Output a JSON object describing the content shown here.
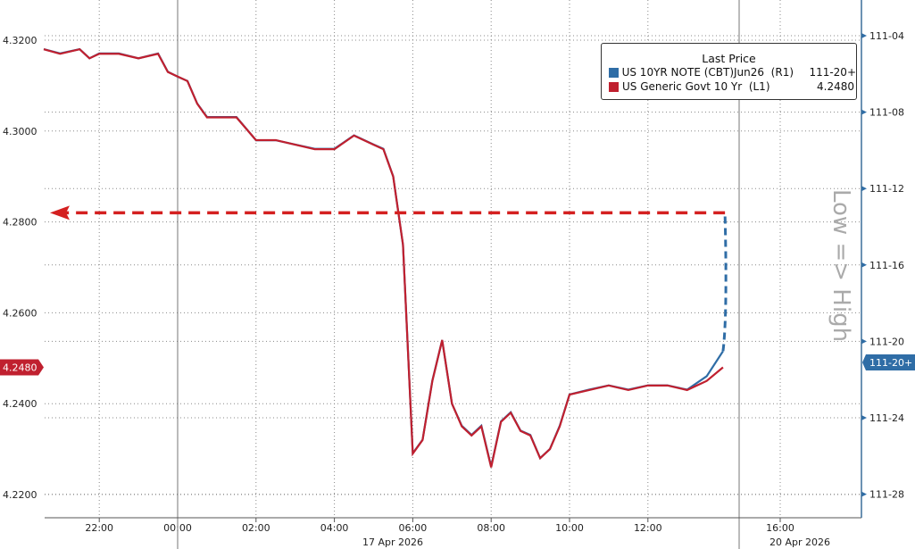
{
  "chart_data": {
    "type": "line",
    "legend": {
      "title": "Last Price",
      "placement": "top-right"
    },
    "watermark": "Low => High",
    "x_ticks": [
      "22:00",
      "00:00",
      "02:00",
      "04:00",
      "06:00",
      "08:00",
      "10:00",
      "12:00",
      "16:00"
    ],
    "date_labels": [
      "17 Apr 2026",
      "20 Apr 2026"
    ],
    "left_axis": {
      "ticks": [
        "4.3200",
        "4.3000",
        "4.2800",
        "4.2600",
        "4.2400",
        "4.2200"
      ],
      "range": [
        4.215,
        4.329
      ]
    },
    "right_axis": {
      "ticks": [
        "111-04",
        "111-08",
        "111-12",
        "111-16",
        "111-20",
        "111-24",
        "111-28"
      ],
      "inverted": true
    },
    "series": [
      {
        "name": "US 10YR NOTE (CBT)Jun26",
        "axis": "R1",
        "last": "111-20+",
        "color": "#2f6da6",
        "points": [
          [
            "20:35",
            111.147
          ],
          [
            "21:00",
            111.154
          ],
          [
            "21:30",
            111.147
          ],
          [
            "21:45",
            111.162
          ],
          [
            "22:00",
            111.154
          ],
          [
            "22:30",
            111.154
          ],
          [
            "23:00",
            111.162
          ],
          [
            "23:30",
            111.154
          ],
          [
            "23:45",
            111.184
          ],
          [
            "00:00",
            111.192
          ],
          [
            "00:15",
            111.199
          ],
          [
            "00:30",
            111.236
          ],
          [
            "00:45",
            111.258
          ],
          [
            "01:00",
            111.258
          ],
          [
            "01:30",
            111.258
          ],
          [
            "02:00",
            111.296
          ],
          [
            "02:30",
            111.296
          ],
          [
            "03:00",
            111.303
          ],
          [
            "03:30",
            111.31
          ],
          [
            "04:00",
            111.31
          ],
          [
            "04:30",
            111.288
          ],
          [
            "05:00",
            111.303
          ],
          [
            "05:15",
            111.31
          ],
          [
            "05:30",
            111.355
          ],
          [
            "05:45",
            111.467
          ],
          [
            "06:00",
            111.808
          ],
          [
            "06:15",
            111.786
          ],
          [
            "06:30",
            111.689
          ],
          [
            "06:45",
            111.623
          ],
          [
            "07:00",
            111.727
          ],
          [
            "07:15",
            111.763
          ],
          [
            "07:30",
            111.778
          ],
          [
            "07:45",
            111.763
          ],
          [
            "08:00",
            111.83
          ],
          [
            "08:15",
            111.756
          ],
          [
            "08:30",
            111.741
          ],
          [
            "08:45",
            111.771
          ],
          [
            "09:00",
            111.778
          ],
          [
            "09:15",
            111.816
          ],
          [
            "09:30",
            111.801
          ],
          [
            "09:45",
            111.763
          ],
          [
            "10:00",
            111.712
          ],
          [
            "10:30",
            111.704
          ],
          [
            "11:00",
            111.697
          ],
          [
            "11:30",
            111.704
          ],
          [
            "12:00",
            111.697
          ],
          [
            "12:30",
            111.697
          ],
          [
            "13:00",
            111.704
          ],
          [
            "13:30",
            111.682
          ],
          [
            "13:55",
            111.641
          ]
        ],
        "dashed_to": [
          "13:58",
          111.416
        ]
      },
      {
        "name": "US Generic Govt 10 Yr",
        "axis": "L1",
        "last": "4.2480",
        "color": "#c0202f",
        "points": [
          [
            "20:35",
            4.318
          ],
          [
            "21:00",
            4.317
          ],
          [
            "21:30",
            4.318
          ],
          [
            "21:45",
            4.316
          ],
          [
            "22:00",
            4.317
          ],
          [
            "22:30",
            4.317
          ],
          [
            "23:00",
            4.316
          ],
          [
            "23:30",
            4.317
          ],
          [
            "23:45",
            4.313
          ],
          [
            "00:00",
            4.312
          ],
          [
            "00:15",
            4.311
          ],
          [
            "00:30",
            4.306
          ],
          [
            "00:45",
            4.303
          ],
          [
            "01:00",
            4.303
          ],
          [
            "01:30",
            4.303
          ],
          [
            "02:00",
            4.298
          ],
          [
            "02:30",
            4.298
          ],
          [
            "03:00",
            4.297
          ],
          [
            "03:30",
            4.296
          ],
          [
            "04:00",
            4.296
          ],
          [
            "04:30",
            4.299
          ],
          [
            "05:00",
            4.297
          ],
          [
            "05:15",
            4.296
          ],
          [
            "05:30",
            4.29
          ],
          [
            "05:45",
            4.275
          ],
          [
            "06:00",
            4.229
          ],
          [
            "06:15",
            4.232
          ],
          [
            "06:30",
            4.245
          ],
          [
            "06:45",
            4.254
          ],
          [
            "07:00",
            4.24
          ],
          [
            "07:15",
            4.235
          ],
          [
            "07:30",
            4.233
          ],
          [
            "07:45",
            4.235
          ],
          [
            "08:00",
            4.226
          ],
          [
            "08:15",
            4.236
          ],
          [
            "08:30",
            4.238
          ],
          [
            "08:45",
            4.234
          ],
          [
            "09:00",
            4.233
          ],
          [
            "09:15",
            4.228
          ],
          [
            "09:30",
            4.23
          ],
          [
            "09:45",
            4.235
          ],
          [
            "10:00",
            4.242
          ],
          [
            "10:30",
            4.243
          ],
          [
            "11:00",
            4.244
          ],
          [
            "11:30",
            4.243
          ],
          [
            "12:00",
            4.244
          ],
          [
            "12:30",
            4.244
          ],
          [
            "13:00",
            4.243
          ],
          [
            "13:30",
            4.245
          ],
          [
            "13:55",
            4.248
          ]
        ]
      }
    ],
    "annotation": {
      "type": "dashed-arrow",
      "level": 4.282,
      "color": "#d42020"
    }
  }
}
